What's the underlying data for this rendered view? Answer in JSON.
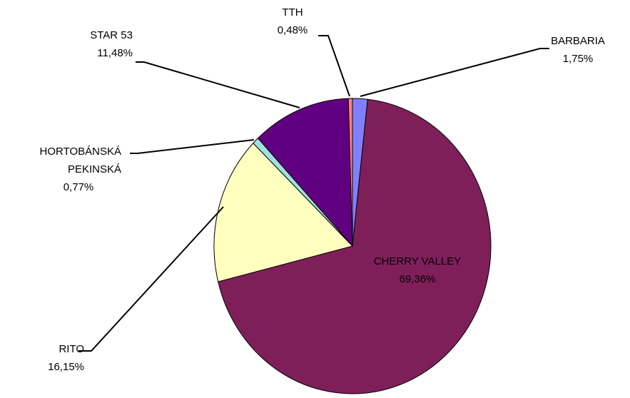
{
  "chart_data": {
    "type": "pie",
    "categories": [
      "BARBARIA",
      "CHERRY VALLEY",
      "RITO",
      "HORTOBÁNSKÁ PEKINSKÁ",
      "STAR 53",
      "TTH"
    ],
    "values": [
      1.75,
      69.36,
      16.15,
      0.77,
      11.48,
      0.48
    ],
    "value_labels": [
      "1,75%",
      "69,36%",
      "16,15%",
      "0,77%",
      "11,48%",
      "0,48%"
    ],
    "colors": [
      "#8080ff",
      "#7f1f5a",
      "#ffffc0",
      "#a0e0e0",
      "#600080",
      "#ff8080"
    ]
  }
}
